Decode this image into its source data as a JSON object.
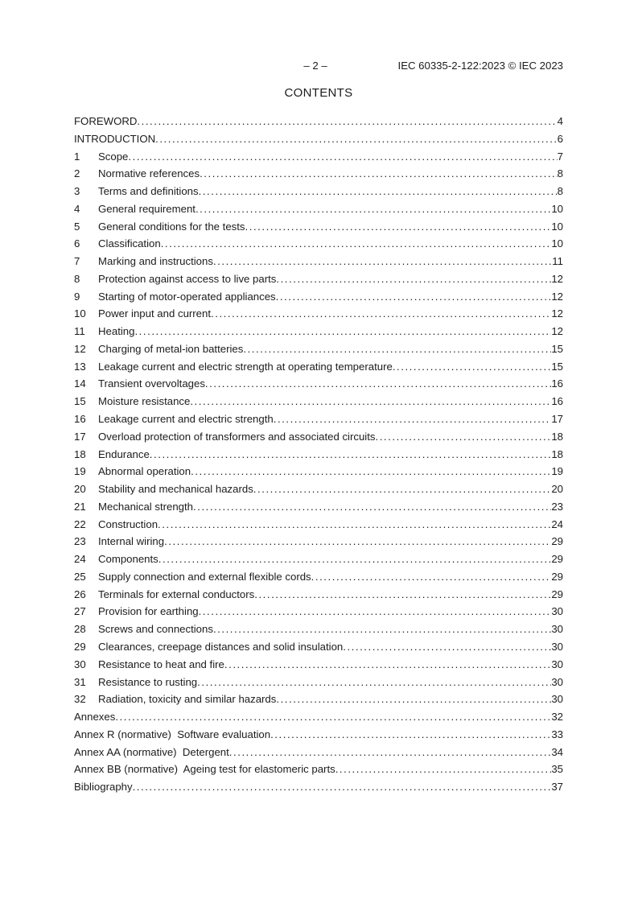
{
  "header": {
    "page_number": "– 2 –",
    "doc_reference": "IEC 60335-2-122:2023 © IEC 2023"
  },
  "title": "CONTENTS",
  "toc": {
    "entries": [
      {
        "num": "",
        "title": "FOREWORD",
        "page": "4"
      },
      {
        "num": "",
        "title": "INTRODUCTION",
        "page": "6"
      },
      {
        "num": "1",
        "title": "Scope",
        "page": "7"
      },
      {
        "num": "2",
        "title": "Normative references",
        "page": "8"
      },
      {
        "num": "3",
        "title": "Terms and definitions",
        "page": "8"
      },
      {
        "num": "4",
        "title": "General requirement",
        "page": "10"
      },
      {
        "num": "5",
        "title": "General conditions for the tests",
        "page": "10"
      },
      {
        "num": "6",
        "title": "Classification",
        "page": "10"
      },
      {
        "num": "7",
        "title": "Marking and instructions",
        "page": "11"
      },
      {
        "num": "8",
        "title": "Protection against access to live parts",
        "page": "12"
      },
      {
        "num": "9",
        "title": "Starting of motor-operated appliances",
        "page": "12"
      },
      {
        "num": "10",
        "title": "Power input and current",
        "page": "12"
      },
      {
        "num": "11",
        "title": "Heating",
        "page": "12"
      },
      {
        "num": "12",
        "title": "Charging of metal-ion batteries",
        "page": "15"
      },
      {
        "num": "13",
        "title": "Leakage current and electric strength at operating temperature",
        "page": "15"
      },
      {
        "num": "14",
        "title": "Transient overvoltages",
        "page": "16"
      },
      {
        "num": "15",
        "title": "Moisture resistance",
        "page": "16"
      },
      {
        "num": "16",
        "title": "Leakage current and electric strength",
        "page": "17"
      },
      {
        "num": "17",
        "title": "Overload protection of transformers and associated circuits",
        "page": "18"
      },
      {
        "num": "18",
        "title": "Endurance",
        "page": "18"
      },
      {
        "num": "19",
        "title": "Abnormal operation",
        "page": "19"
      },
      {
        "num": "20",
        "title": "Stability and mechanical hazards",
        "page": "20"
      },
      {
        "num": "21",
        "title": "Mechanical strength",
        "page": "23"
      },
      {
        "num": "22",
        "title": "Construction",
        "page": "24"
      },
      {
        "num": "23",
        "title": "Internal wiring",
        "page": "29"
      },
      {
        "num": "24",
        "title": "Components",
        "page": "29"
      },
      {
        "num": "25",
        "title": "Supply connection and external flexible cords",
        "page": "29"
      },
      {
        "num": "26",
        "title": "Terminals for external conductors",
        "page": "29"
      },
      {
        "num": "27",
        "title": "Provision for earthing",
        "page": "30"
      },
      {
        "num": "28",
        "title": "Screws and connections",
        "page": "30"
      },
      {
        "num": "29",
        "title": "Clearances, creepage distances and solid insulation",
        "page": "30"
      },
      {
        "num": "30",
        "title": "Resistance to heat and fire",
        "page": "30"
      },
      {
        "num": "31",
        "title": "Resistance to rusting",
        "page": "30"
      },
      {
        "num": "32",
        "title": "Radiation, toxicity and similar hazards",
        "page": "30"
      },
      {
        "num": "",
        "title": "Annexes",
        "page": "32"
      },
      {
        "num": "",
        "title": "Annex R (normative)  Software evaluation",
        "page": "33"
      },
      {
        "num": "",
        "title": "Annex AA (normative)  Detergent",
        "page": "34"
      },
      {
        "num": "",
        "title": "Annex BB (normative)  Ageing test for elastomeric parts",
        "page": "35"
      },
      {
        "num": "",
        "title": "Bibliography",
        "page": "37"
      }
    ]
  },
  "colors": {
    "text": "#1c1c1c",
    "background": "#ffffff"
  }
}
